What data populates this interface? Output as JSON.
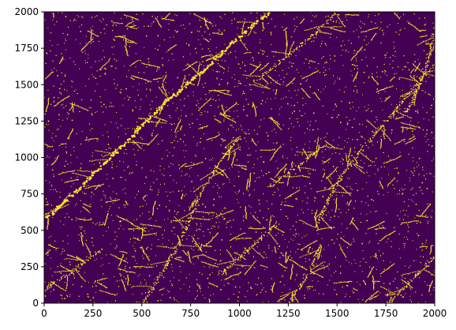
{
  "chart_data": {
    "type": "heatmap",
    "description_kind": "binary raster image (imshow)",
    "title": "",
    "xlabel": "",
    "ylabel": "",
    "xlim": [
      0,
      2000
    ],
    "ylim": [
      0,
      2000
    ],
    "x_ticks": [
      0,
      250,
      500,
      750,
      1000,
      1250,
      1500,
      1750,
      2000
    ],
    "y_ticks": [
      0,
      250,
      500,
      750,
      1000,
      1250,
      1500,
      1750,
      2000
    ],
    "x_tick_labels": [
      "0",
      "250",
      "500",
      "750",
      "1000",
      "1250",
      "1500",
      "1750",
      "2000"
    ],
    "y_tick_labels": [
      "0",
      "250",
      "500",
      "750",
      "1000",
      "1250",
      "1500",
      "1750",
      "2000"
    ],
    "grid": false,
    "legend": "none",
    "colors": {
      "background": "#440154",
      "foreground": "#fde725"
    },
    "values": [
      0,
      1
    ],
    "features": [
      {
        "kind": "lineament",
        "path": [
          [
            0,
            580
          ],
          [
            150,
            760
          ],
          [
            350,
            1020
          ],
          [
            500,
            1230
          ],
          [
            650,
            1420
          ],
          [
            780,
            1560
          ],
          [
            900,
            1720
          ],
          [
            1050,
            1900
          ],
          [
            1150,
            2000
          ]
        ]
      },
      {
        "kind": "lineament",
        "path": [
          [
            500,
            0
          ],
          [
            620,
            250
          ],
          [
            720,
            500
          ],
          [
            800,
            760
          ],
          [
            900,
            980
          ],
          [
            1000,
            1150
          ]
        ]
      },
      {
        "kind": "lineament",
        "path": [
          [
            1380,
            500
          ],
          [
            1450,
            700
          ],
          [
            1520,
            880
          ],
          [
            1650,
            1100
          ],
          [
            1780,
            1300
          ],
          [
            1900,
            1500
          ],
          [
            2000,
            1650
          ]
        ]
      },
      {
        "kind": "lineament",
        "path": [
          [
            1750,
            0
          ],
          [
            1850,
            120
          ],
          [
            2000,
            330
          ]
        ]
      },
      {
        "kind": "lineament",
        "path": [
          [
            1250,
            0
          ],
          [
            1350,
            200
          ],
          [
            1420,
            420
          ]
        ]
      },
      {
        "kind": "lineament",
        "path": [
          [
            1050,
            1500
          ],
          [
            1200,
            1650
          ],
          [
            1350,
            1820
          ],
          [
            1500,
            2000
          ]
        ]
      },
      {
        "kind": "lineament",
        "path": [
          [
            1850,
            1300
          ],
          [
            1950,
            1600
          ],
          [
            2000,
            1900
          ]
        ]
      },
      {
        "kind": "lineament",
        "path": [
          [
            0,
            100
          ],
          [
            150,
            230
          ],
          [
            300,
            380
          ]
        ]
      },
      {
        "kind": "lineament",
        "path": [
          [
            900,
            200
          ],
          [
            1050,
            380
          ],
          [
            1200,
            560
          ]
        ]
      },
      {
        "kind": "lineament",
        "path": [
          [
            1150,
            800
          ],
          [
            1300,
            950
          ],
          [
            1450,
            1100
          ]
        ]
      }
    ]
  }
}
